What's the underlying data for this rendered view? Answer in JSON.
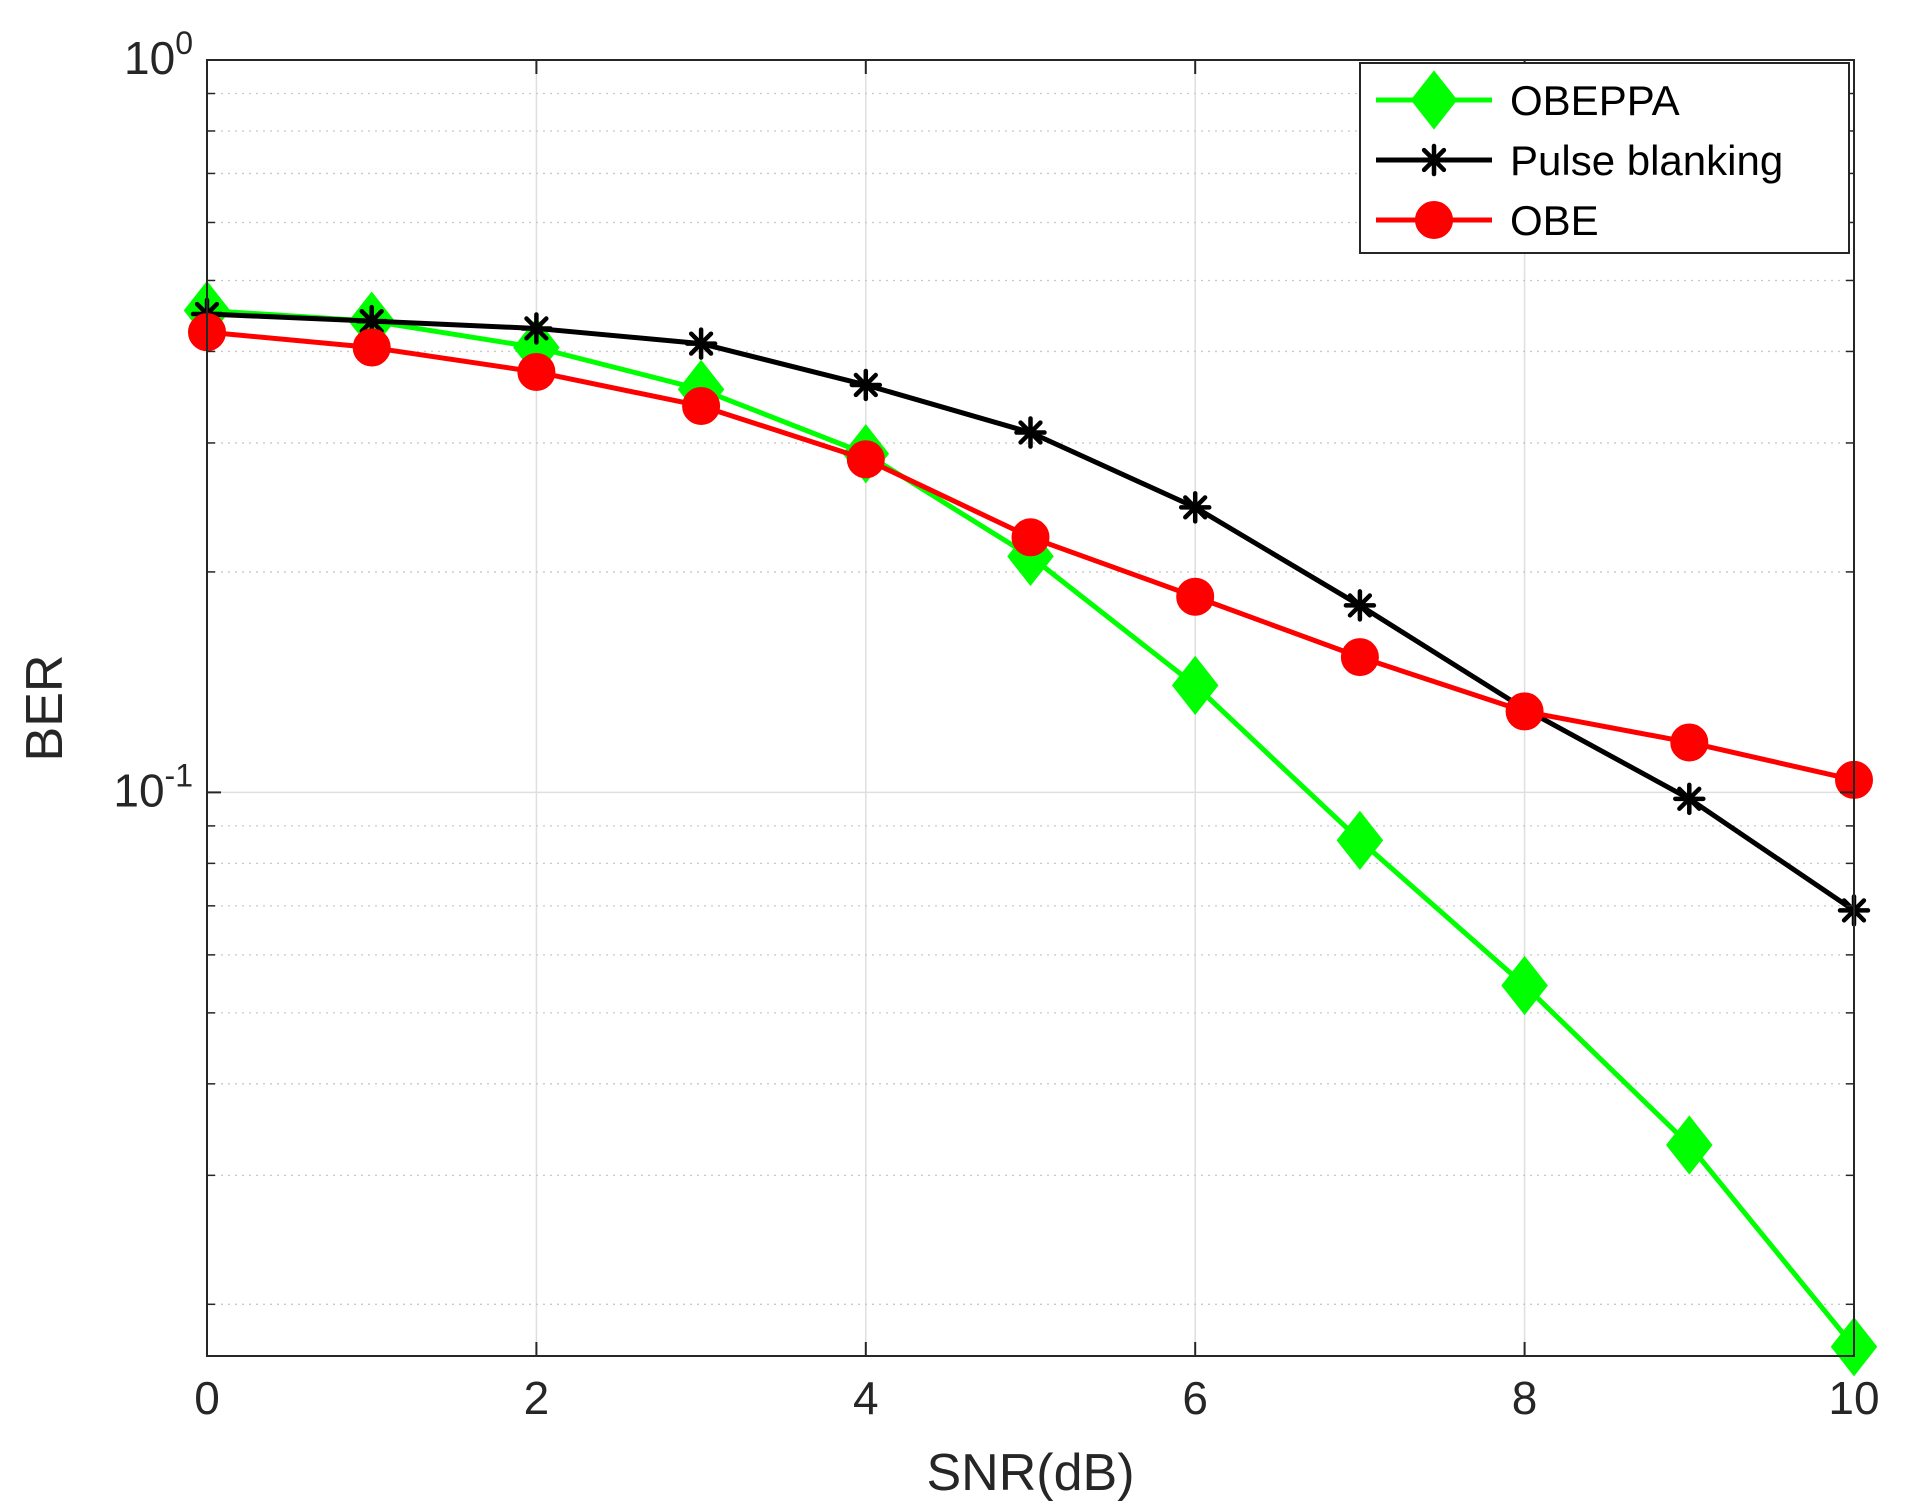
{
  "chart_data": {
    "type": "line",
    "title": "",
    "xlabel": "SNR(dB)",
    "ylabel": "BER",
    "yscale": "log",
    "xlim": [
      0,
      10
    ],
    "ylim": [
      0.017,
      1
    ],
    "grid": true,
    "legend_position": "top-right",
    "x": [
      0,
      1,
      2,
      3,
      4,
      5,
      6,
      7,
      8,
      9,
      10
    ],
    "xticks": [
      0,
      2,
      4,
      6,
      8,
      10
    ],
    "xtick_labels": [
      "0",
      "2",
      "4",
      "6",
      "8",
      "10"
    ],
    "yticks": [
      {
        "value": 1,
        "base": "10",
        "exp": "0"
      },
      {
        "value": 0.1,
        "base": "10",
        "exp": "-1"
      }
    ],
    "series": [
      {
        "name": "OBEPPA",
        "color": "#00ff00",
        "marker": "diamond",
        "values": [
          0.455,
          0.44,
          0.405,
          0.355,
          0.29,
          0.21,
          0.14,
          0.086,
          0.0545,
          0.033,
          0.0175
        ]
      },
      {
        "name": "Pulse blanking",
        "color": "#000000",
        "marker": "asterisk",
        "values": [
          0.45,
          0.44,
          0.43,
          0.41,
          0.36,
          0.31,
          0.245,
          0.18,
          0.13,
          0.098,
          0.069
        ]
      },
      {
        "name": "OBE",
        "color": "#ff0000",
        "marker": "circle",
        "values": [
          0.425,
          0.405,
          0.375,
          0.337,
          0.285,
          0.223,
          0.185,
          0.153,
          0.129,
          0.117,
          0.104
        ]
      }
    ]
  }
}
